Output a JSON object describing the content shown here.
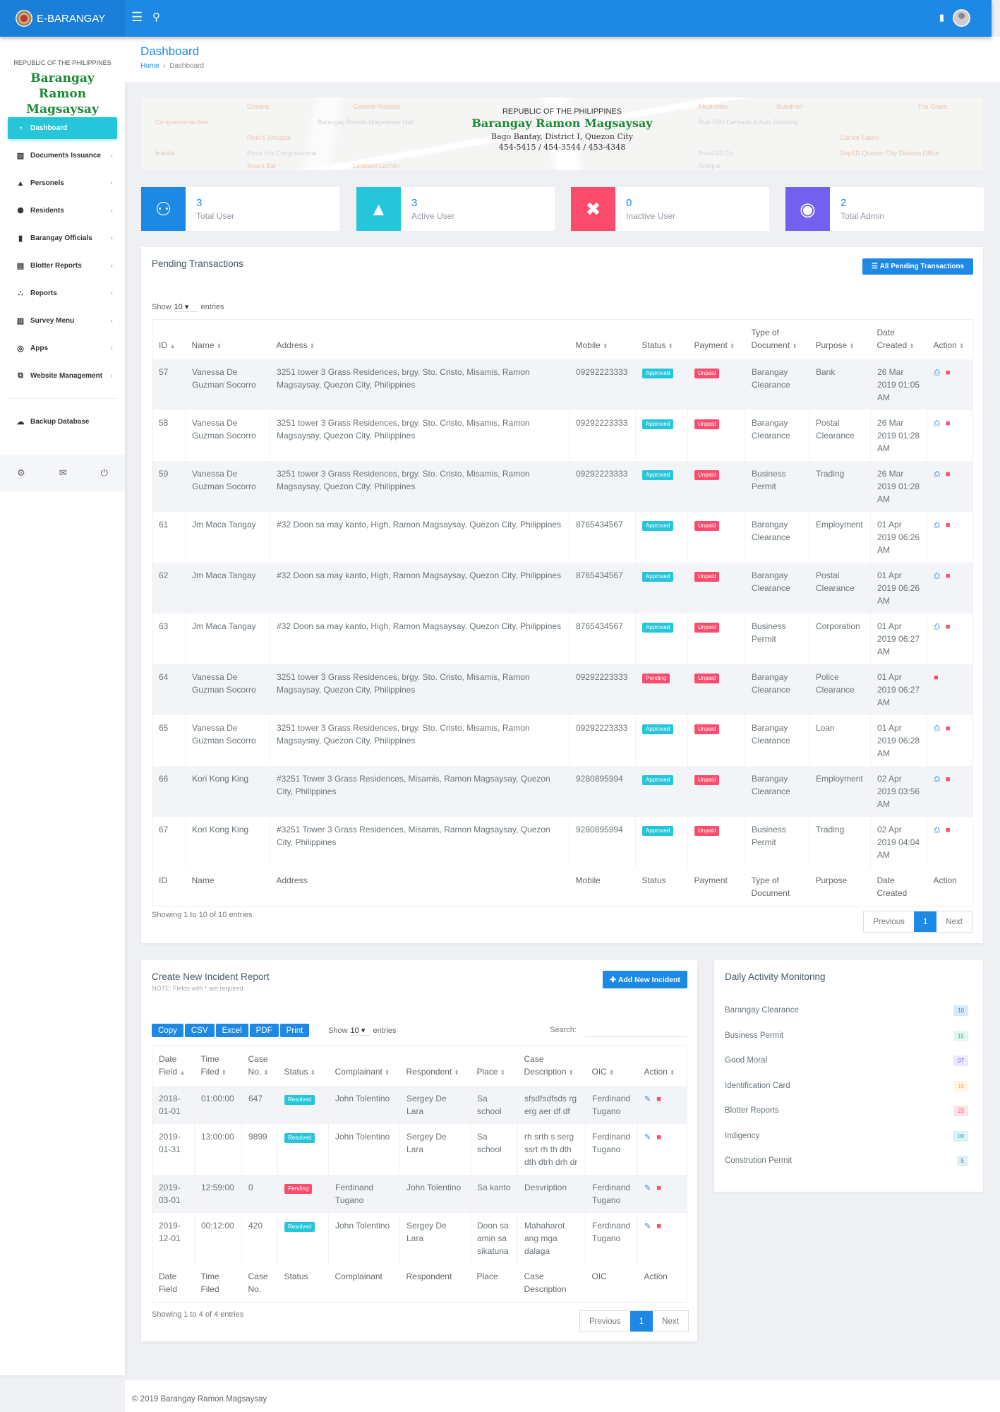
{
  "topbar": {
    "brand": "E-BARANGAY",
    "menu_icon": "hamburger-icon",
    "search_icon": "search-icon",
    "message_icon": "message-icon",
    "avatar_icon": "user-avatar-icon"
  },
  "sidebar": {
    "republic": "REPUBLIC OF THE PHILIPPINES",
    "barangay": "Barangay Ramon Magsaysay",
    "items": [
      {
        "label": "Dashboard",
        "icon": "dashboard-icon"
      },
      {
        "label": "Documents Issuance",
        "icon": "book-icon"
      },
      {
        "label": "Personels",
        "icon": "user-icon"
      },
      {
        "label": "Residents",
        "icon": "users-icon"
      },
      {
        "label": "Barangay Officials",
        "icon": "id-badge-icon"
      },
      {
        "label": "Blotter Reports",
        "icon": "notebook-icon"
      },
      {
        "label": "Reports",
        "icon": "chart-icon"
      },
      {
        "label": "Survey Menu",
        "icon": "survey-icon"
      },
      {
        "label": "Apps",
        "icon": "target-icon"
      },
      {
        "label": "Website Management",
        "icon": "window-icon"
      }
    ],
    "backup": "Backup Database"
  },
  "header": {
    "title": "Dashboard",
    "crumb_home": "Home",
    "crumb_current": "Dashboard"
  },
  "banner": {
    "line1": "REPUBLIC OF THE PHILIPPINES",
    "line2": "Barangay Ramon Magsaysay",
    "line3": "Bago Bantay, District I, Quezon City",
    "line4": "454-5415 / 454-3544 / 453-4348",
    "map_labels": [
      "Gosons",
      "Pixie's Smugba",
      "Pizza Hut Congressional",
      "Snack Bar",
      "Lembest Lechon",
      "Barangay Ramon Magsaysay Hall",
      "General Hospital",
      "Mojamitos",
      "Run OBJ Carwash & Auto Detailing",
      "Clarice Eatery",
      "DepED Quezon City Division Office",
      "PureF20 Co",
      "Imelda",
      "Bukidnon",
      "Antique",
      "The Grass",
      "Congressional Ave"
    ]
  },
  "stats": [
    {
      "value": "3",
      "label": "Total User",
      "color": "#1e88e5",
      "icon": "users-icon"
    },
    {
      "value": "3",
      "label": "Active User",
      "color": "#26c6da",
      "icon": "user-icon"
    },
    {
      "value": "0",
      "label": "Inactive User",
      "color": "#fc4b6c",
      "icon": "user-times-icon"
    },
    {
      "value": "2",
      "label": "Total Admin",
      "color": "#7460ee",
      "icon": "user-circle-icon"
    }
  ],
  "pending": {
    "title": "Pending Transactions",
    "all_button": "All Pending Transactions",
    "show": "Show",
    "length": "10",
    "entries": "entries",
    "columns": [
      "ID",
      "Name",
      "Address",
      "Mobile",
      "Status",
      "Payment",
      "Type of Document",
      "Purpose",
      "Date Created",
      "Action"
    ],
    "rows": [
      {
        "id": "57",
        "name": "Vanessa De Guzman Socorro",
        "address": "3251 tower 3 Grass Residences, brgy. Sto. Cristo, Misamis, Ramon Magsaysay, Quezon City, Philippines",
        "mobile": "09292223333",
        "status": "Approved",
        "payment": "Unpaid",
        "type": "Barangay Clearance",
        "purpose": "Bank",
        "date": "26 Mar 2019 01:05 AM",
        "print": true
      },
      {
        "id": "58",
        "name": "Vanessa De Guzman Socorro",
        "address": "3251 tower 3 Grass Residences, brgy. Sto. Cristo, Misamis, Ramon Magsaysay, Quezon City, Philippines",
        "mobile": "09292223333",
        "status": "Approved",
        "payment": "Unpaid",
        "type": "Barangay Clearance",
        "purpose": "Postal Clearance",
        "date": "26 Mar 2019 01:28 AM",
        "print": true
      },
      {
        "id": "59",
        "name": "Vanessa De Guzman Socorro",
        "address": "3251 tower 3 Grass Residences, brgy. Sto. Cristo, Misamis, Ramon Magsaysay, Quezon City, Philippines",
        "mobile": "09292223333",
        "status": "Approved",
        "payment": "Unpaid",
        "type": "Business Permit",
        "purpose": "Trading",
        "date": "26 Mar 2019 01:28 AM",
        "print": true
      },
      {
        "id": "61",
        "name": "Jm Maca Tangay",
        "address": "#32 Doon sa may kanto, High, Ramon Magsaysay, Quezon City, Philippines",
        "mobile": "8765434567",
        "status": "Approved",
        "payment": "Unpaid",
        "type": "Barangay Clearance",
        "purpose": "Employment",
        "date": "01 Apr 2019 06:26 AM",
        "print": true
      },
      {
        "id": "62",
        "name": "Jm Maca Tangay",
        "address": "#32 Doon sa may kanto, High, Ramon Magsaysay, Quezon City, Philippines",
        "mobile": "8765434567",
        "status": "Approved",
        "payment": "Unpaid",
        "type": "Barangay Clearance",
        "purpose": "Postal Clearance",
        "date": "01 Apr 2019 06:26 AM",
        "print": true
      },
      {
        "id": "63",
        "name": "Jm Maca Tangay",
        "address": "#32 Doon sa may kanto, High, Ramon Magsaysay, Quezon City, Philippines",
        "mobile": "8765434567",
        "status": "Approved",
        "payment": "Unpaid",
        "type": "Business Permit",
        "purpose": "Corporation",
        "date": "01 Apr 2019 06:27 AM",
        "print": true
      },
      {
        "id": "64",
        "name": "Vanessa De Guzman Socorro",
        "address": "3251 tower 3 Grass Residences, brgy. Sto. Cristo, Misamis, Ramon Magsaysay, Quezon City, Philippines",
        "mobile": "09292223333",
        "status": "Pending",
        "payment": "Unpaid",
        "type": "Barangay Clearance",
        "purpose": "Police Clearance",
        "date": "01 Apr 2019 06:27 AM",
        "print": false
      },
      {
        "id": "65",
        "name": "Vanessa De Guzman Socorro",
        "address": "3251 tower 3 Grass Residences, brgy. Sto. Cristo, Misamis, Ramon Magsaysay, Quezon City, Philippines",
        "mobile": "09292223333",
        "status": "Approved",
        "payment": "Unpaid",
        "type": "Barangay Clearance",
        "purpose": "Loan",
        "date": "01 Apr 2019 06:28 AM",
        "print": true
      },
      {
        "id": "66",
        "name": "Kori Kong King",
        "address": "#3251 Tower 3 Grass Residences, Misamis, Ramon Magsaysay, Quezon City, Philippines",
        "mobile": "9280895994",
        "status": "Approved",
        "payment": "Unpaid",
        "type": "Barangay Clearance",
        "purpose": "Employment",
        "date": "02 Apr 2019 03:56 AM",
        "print": true
      },
      {
        "id": "67",
        "name": "Kori Kong King",
        "address": "#3251 Tower 3 Grass Residences, Misamis, Ramon Magsaysay, Quezon City, Philippines",
        "mobile": "9280895994",
        "status": "Approved",
        "payment": "Unpaid",
        "type": "Business Permit",
        "purpose": "Trading",
        "date": "02 Apr 2019 04:04 AM",
        "print": true
      }
    ],
    "info": "Showing 1 to 10 of 10 entries",
    "prev": "Previous",
    "page": "1",
    "next": "Next"
  },
  "incident": {
    "title": "Create New Incident Report",
    "note": "NOTE: Fields with * are required.",
    "add_button": "Add New Incident",
    "exports": [
      "Copy",
      "CSV",
      "Excel",
      "PDF",
      "Print"
    ],
    "show": "Show",
    "length": "10",
    "entries": "entries",
    "search_label": "Search:",
    "search_value": "",
    "columns": [
      "Date Field",
      "Time Filed",
      "Case No.",
      "Status",
      "Complainant",
      "Respondent",
      "Place",
      "Case Description",
      "OIC",
      "Action"
    ],
    "rows": [
      {
        "date": "2018-01-01",
        "time": "01:00:00",
        "case": "647",
        "status": "Resolved",
        "complainant": "John Tolentino",
        "respondent": "Sergey De Lara",
        "place": "Sa school",
        "desc": "sfsdfsdfsds rg erg aer df df",
        "oic": "Ferdinand Tugano"
      },
      {
        "date": "2019-01-31",
        "time": "13:00:00",
        "case": "9899",
        "status": "Resolved",
        "complainant": "John Tolentino",
        "respondent": "Sergey De Lara",
        "place": "Sa school",
        "desc": "rh srth s serg ssrt rh th dth dth dtrh drh dr",
        "oic": "Ferdinand Tugano"
      },
      {
        "date": "2019-03-01",
        "time": "12:59:00",
        "case": "0",
        "status": "Pending",
        "complainant": "Ferdinand Tugano",
        "respondent": "John Tolentino",
        "place": "Sa kanto",
        "desc": "Desvription",
        "oic": "Ferdinand Tugano"
      },
      {
        "date": "2019-12-01",
        "time": "00:12:00",
        "case": "420",
        "status": "Resolved",
        "complainant": "John Tolentino",
        "respondent": "Sergey De Lara",
        "place": "Doon sa amin sa sikatuna",
        "desc": "Mahaharot ang mga dalaga",
        "oic": "Ferdinand Tugano"
      }
    ],
    "info": "Showing 1 to 4 of 4 entries",
    "prev": "Previous",
    "page": "1",
    "next": "Next"
  },
  "daily": {
    "title": "Daily Activity Monitoring",
    "items": [
      {
        "label": "Barangay Clearance",
        "count": "10",
        "bg": "#d6e9fb",
        "fg": "#1e88e5"
      },
      {
        "label": "Business Permit",
        "count": "15",
        "bg": "#e0f8ec",
        "fg": "#21c48a"
      },
      {
        "label": "Good Moral",
        "count": "07",
        "bg": "#ece8fd",
        "fg": "#7460ee"
      },
      {
        "label": "Identification Card",
        "count": "19",
        "bg": "#fff5e3",
        "fg": "#ffb22b"
      },
      {
        "label": "Blotter Reports",
        "count": "23",
        "bg": "#fde3e8",
        "fg": "#fc4b6c"
      },
      {
        "label": "Indigency",
        "count": "09",
        "bg": "#dcf2f2",
        "fg": "#20aee3"
      },
      {
        "label": "Constrution Permit",
        "count": "5",
        "bg": "#ddf1f6",
        "fg": "#1e88a5"
      }
    ]
  },
  "footer": "© 2019 Barangay Ramon Magsaysay"
}
